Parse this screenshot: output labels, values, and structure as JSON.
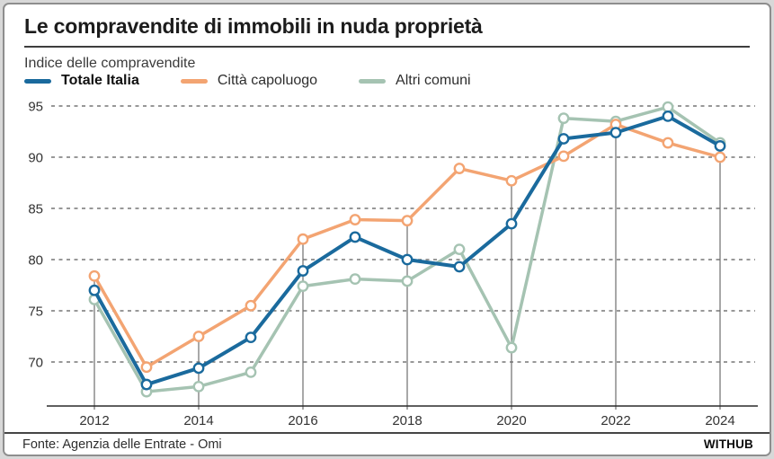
{
  "card": {
    "title": "Le compravendite di immobili in nuda proprietà",
    "subtitle": "Indice delle compravendite",
    "source": "Fonte: Agenzia delle Entrate - Omi",
    "brand": "WITHUB"
  },
  "colors": {
    "totale_italia": "#1a6a9d",
    "citta_capoluogo": "#f3a472",
    "altri_comuni": "#a5c3b2",
    "gridline": "#5a5a5a",
    "axis": "#2a2a2a",
    "dropline": "#6f6f6f"
  },
  "chart_data": {
    "type": "line",
    "title": "Le compravendite di immobili in nuda proprietà",
    "subtitle": "Indice delle compravendite",
    "xlabel": "",
    "ylabel": "",
    "x": [
      2012,
      2013,
      2014,
      2015,
      2016,
      2017,
      2018,
      2019,
      2020,
      2021,
      2022,
      2023,
      2024
    ],
    "x_tick_years": [
      2012,
      2014,
      2016,
      2018,
      2020,
      2022,
      2024
    ],
    "yticks": [
      70,
      75,
      80,
      85,
      90,
      95
    ],
    "ylim": [
      65.7,
      96.3
    ],
    "grid": "horizontal-dashed",
    "legend_position": "top-left",
    "series": [
      {
        "name": "Totale Italia",
        "color": "#1a6a9d",
        "width": 4,
        "values": [
          77.0,
          67.8,
          69.4,
          72.4,
          78.9,
          82.2,
          80.0,
          79.3,
          83.5,
          91.8,
          92.4,
          94.0,
          91.1
        ]
      },
      {
        "name": "Città capoluogo",
        "color": "#f3a472",
        "width": 3.5,
        "values": [
          78.4,
          69.5,
          72.5,
          75.5,
          82.0,
          83.9,
          83.8,
          88.9,
          87.7,
          90.1,
          93.2,
          91.4,
          90.0
        ]
      },
      {
        "name": "Altri comuni",
        "color": "#a5c3b2",
        "width": 3.5,
        "values": [
          76.1,
          67.1,
          67.6,
          69.0,
          77.4,
          78.1,
          77.9,
          81.0,
          71.4,
          93.8,
          93.5,
          94.9,
          91.4
        ]
      }
    ],
    "droplines": {
      "years": [
        2012,
        2014,
        2016,
        2018,
        2020,
        2022,
        2024
      ],
      "to_series": "Città capoluogo"
    },
    "markers": {
      "shape": "circle",
      "fill": "#ffffff",
      "radius": 5.2
    }
  }
}
